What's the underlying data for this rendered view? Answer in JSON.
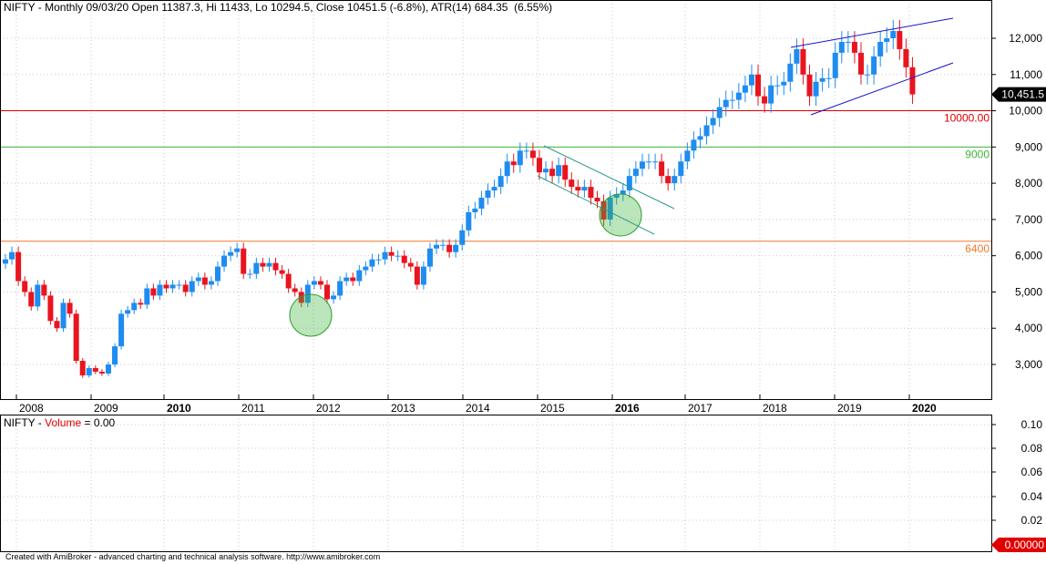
{
  "header": {
    "symbol": "NIFTY",
    "info": "NIFTY - Monthly 09/03/20 Open 11387.3, Hi 11433, Lo 10294.5, Close 10451.5 (-6.8%), ATR(14) 684.35  (6.55%)"
  },
  "volume_header": {
    "prefix": "NIFTY - ",
    "label": "Volume",
    "value_text": " = 0.00"
  },
  "footer": "Created with AmiBroker - advanced charting and technical analysis software. http://www.amibroker.com",
  "colors": {
    "up": "#1e8cf0",
    "down": "#e8141e",
    "red_line": "#e00000",
    "green_line": "#3cb43c",
    "orange_line": "#f07828",
    "channel": "#1414c8",
    "grid": "#c8c8c8"
  },
  "chart_data": [
    {
      "type": "candlestick",
      "title": "NIFTY - Monthly",
      "x_labels": [
        "2008",
        "2009",
        "2010",
        "2011",
        "2012",
        "2013",
        "2014",
        "2015",
        "2016",
        "2017",
        "2018",
        "2019",
        "2020"
      ],
      "bold_x_labels": [
        "2010",
        "2016",
        "2020"
      ],
      "y_ticks": [
        3000,
        4000,
        5000,
        6000,
        7000,
        8000,
        9000,
        10000,
        11000,
        12000
      ],
      "ylim": [
        2000,
        12800
      ],
      "last_price_label": "10,451.5",
      "horizontal_lines": [
        {
          "value": 10000,
          "label": "10000.00",
          "color": "#e00000"
        },
        {
          "value": 9000,
          "label": "9000",
          "color": "#3cb43c"
        },
        {
          "value": 6400,
          "label": "6400",
          "color": "#f07828"
        }
      ],
      "close_series": [
        5900,
        6100,
        5300,
        5000,
        4600,
        5200,
        4900,
        4200,
        4000,
        4700,
        4400,
        3100,
        2700,
        2900,
        2800,
        2750,
        3000,
        3500,
        4400,
        4500,
        4700,
        4650,
        5100,
        4900,
        5200,
        5100,
        5200,
        5200,
        5000,
        5300,
        5400,
        5200,
        5300,
        5700,
        6000,
        6100,
        6200,
        5500,
        5500,
        5800,
        5700,
        5800,
        5600,
        5500,
        5100,
        5000,
        4700,
        5200,
        5300,
        5200,
        4800,
        4900,
        5300,
        5400,
        5300,
        5600,
        5700,
        5900,
        5900,
        6100,
        6000,
        6000,
        5800,
        5700,
        5200,
        5700,
        6200,
        6300,
        6300,
        6100,
        6300,
        6700,
        7200,
        7300,
        7600,
        7800,
        7900,
        8200,
        8600,
        8500,
        8900,
        8900,
        8700,
        8300,
        8400,
        8200,
        8500,
        8100,
        7900,
        7800,
        7900,
        7600,
        7500,
        7000,
        7600,
        7700,
        7800,
        8200,
        8400,
        8600,
        8600,
        8600,
        8200,
        8000,
        8200,
        8600,
        8900,
        9200,
        9300,
        9600,
        9800,
        10100,
        10300,
        10300,
        10500,
        10700,
        11000,
        10400,
        10200,
        10700,
        10700,
        10800,
        11300,
        11700,
        11000,
        10400,
        10800,
        10900,
        10900,
        11600,
        11900,
        11900,
        11600,
        11000,
        11000,
        11500,
        11900,
        12000,
        12200,
        11700,
        11200,
        10451.5
      ],
      "annotations": [
        "descending channel 2015-2016",
        "rising wedge 2018-2020",
        "support circle late 2011",
        "support circle early 2016"
      ]
    },
    {
      "type": "bar",
      "title": "NIFTY - Volume",
      "y_ticks": [
        "0.10",
        "0.08",
        "0.06",
        "0.04",
        "0.02"
      ],
      "last_value_label": "0.00000"
    }
  ]
}
